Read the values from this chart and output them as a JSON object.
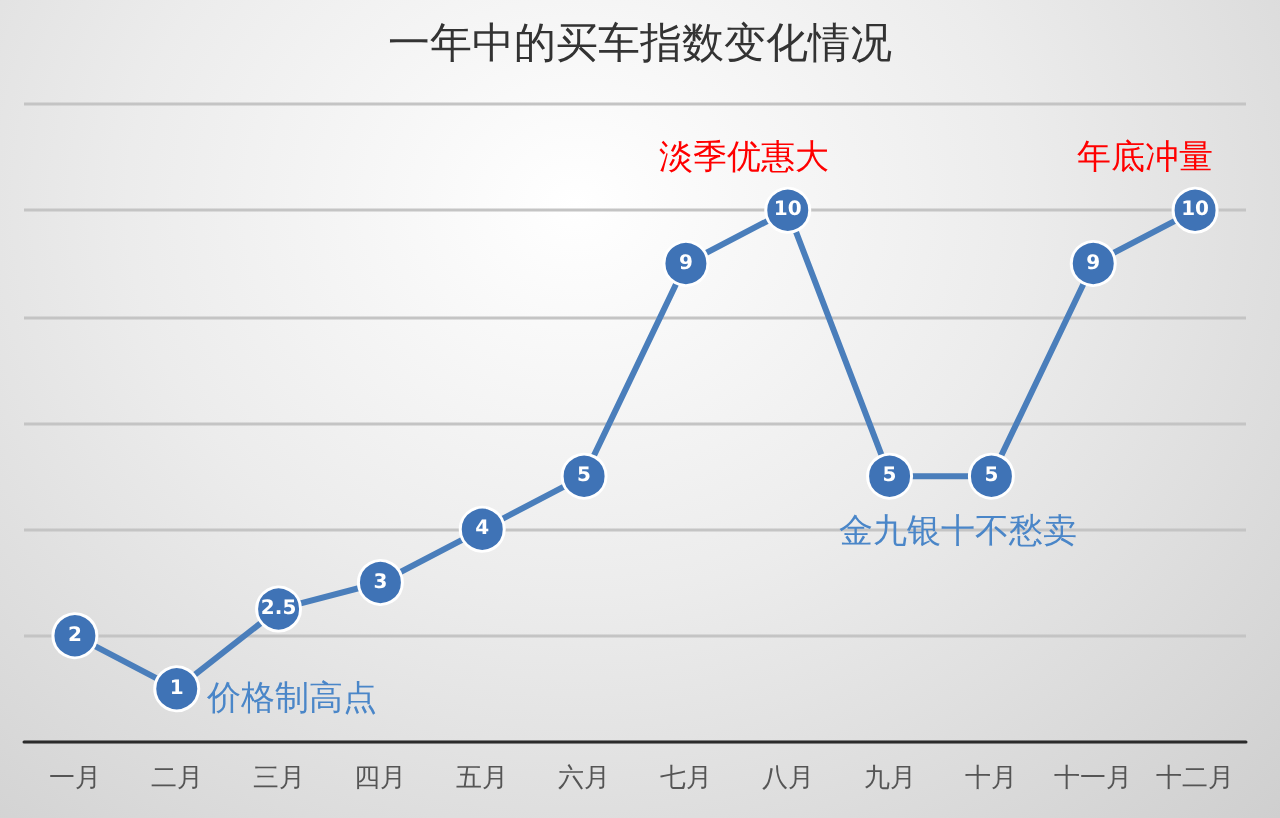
{
  "chart_data": {
    "type": "line",
    "title": "一年中的买车指数变化情况",
    "categories": [
      "一月",
      "二月",
      "三月",
      "四月",
      "五月",
      "六月",
      "七月",
      "八月",
      "九月",
      "十月",
      "十一月",
      "十二月"
    ],
    "values": [
      2,
      1,
      2.5,
      3,
      4,
      5,
      9,
      10,
      5,
      5,
      9,
      10
    ],
    "color": "#4a7ebb",
    "ylim": [
      0,
      12
    ],
    "yticks": [
      {
        "value": 0,
        "label": null
      },
      {
        "value": 2,
        "label": null
      },
      {
        "value": 4,
        "label": null
      },
      {
        "value": 6,
        "label": null
      },
      {
        "value": 8,
        "label": null
      },
      {
        "value": 10,
        "label": null
      },
      {
        "value": 12,
        "label": null
      }
    ],
    "tick_labels": "x",
    "grid": "y",
    "marker": "circle",
    "line_style": "solid",
    "data_labels": true,
    "annotations": [
      {
        "text": "淡季优惠大",
        "x": "八月",
        "y": 10
      },
      {
        "text": "年底冲量",
        "x": "十二月",
        "y": 10
      },
      {
        "text": "金九银十不愁卖",
        "x": "九月",
        "y": 5
      },
      {
        "text": "价格制高点",
        "x": "二月",
        "y": 1
      }
    ]
  }
}
